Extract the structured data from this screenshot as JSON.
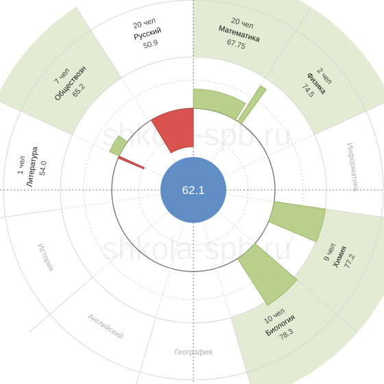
{
  "chart_data": {
    "type": "polar-bar",
    "center_value": "62.1",
    "baseline": 62.1,
    "watermark": "shkola-spb.ru",
    "colors": {
      "above": "#b9d08c",
      "above_stroke": "#8eae55",
      "below": "#d9534f",
      "below_stroke": "#a33a37",
      "highlight_band": "#e3ecd3",
      "center_circle": "#5f8dc4"
    },
    "sectors": [
      {
        "subject": "Математика",
        "count": "20 чел",
        "score": 67.75,
        "score_label": "67.75",
        "highlight": true
      },
      {
        "subject": "Физика",
        "count": "2 чел",
        "score": 74.5,
        "score_label": "74.5",
        "highlight": true
      },
      {
        "subject": "Информатика",
        "count": null,
        "score": null,
        "score_label": null,
        "highlight": false
      },
      {
        "subject": "Химия",
        "count": "9 чел",
        "score": 77.2,
        "score_label": "77.2",
        "highlight": true
      },
      {
        "subject": "Биология",
        "count": "10 чел",
        "score": 78.3,
        "score_label": "78.3",
        "highlight": true
      },
      {
        "subject": "География",
        "count": null,
        "score": null,
        "score_label": null,
        "highlight": false
      },
      {
        "subject": "Английский",
        "count": null,
        "score": null,
        "score_label": null,
        "highlight": false
      },
      {
        "subject": "История",
        "count": null,
        "score": null,
        "score_label": null,
        "highlight": false
      },
      {
        "subject": "Литература",
        "count": "1 чел",
        "score": 54.0,
        "score_label": "54.0",
        "highlight": false
      },
      {
        "subject": "Обществознание",
        "label": "Обществозн",
        "count": "7 чел",
        "score": 65.2,
        "score_label": "65.2",
        "highlight": true
      },
      {
        "subject": "Русский",
        "count": "20 чел",
        "score": 50.9,
        "score_label": "50.9",
        "highlight": false
      }
    ]
  }
}
